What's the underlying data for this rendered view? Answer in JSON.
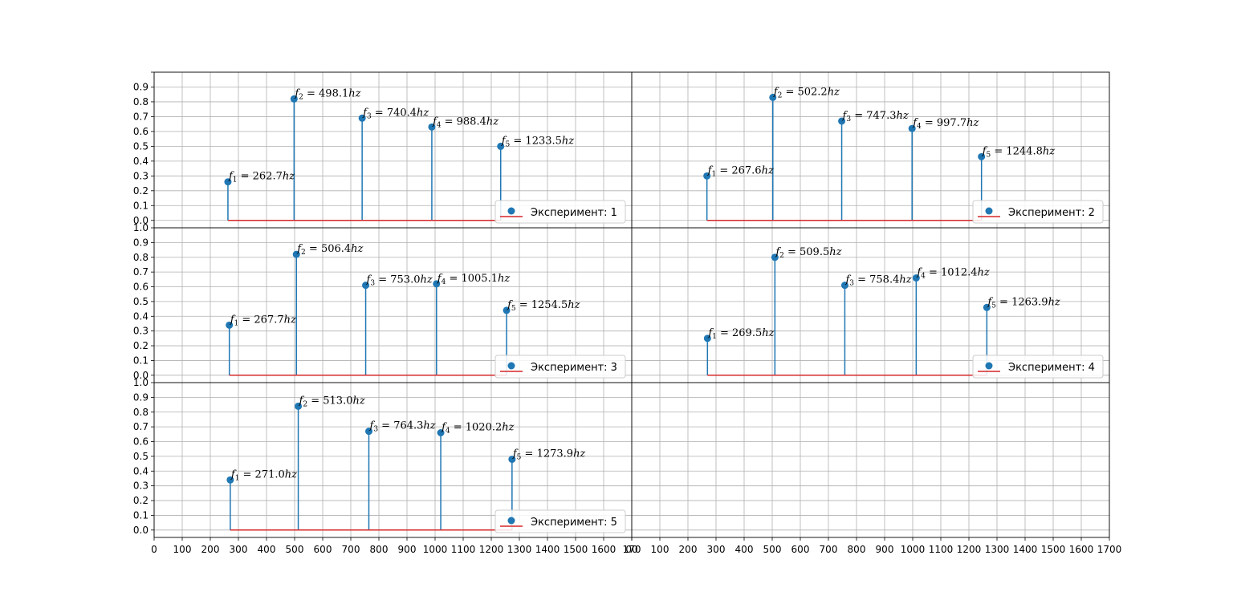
{
  "chart_data": [
    {
      "type": "stem",
      "name": "Эксперимент: 1",
      "legend": {
        "label": "Эксперимент: 1",
        "placement": "lower-right"
      },
      "x": [
        262.7,
        498.1,
        740.4,
        988.4,
        1233.5
      ],
      "y": [
        0.26,
        0.82,
        0.69,
        0.63,
        0.5
      ],
      "labels": [
        "262.7",
        "498.1",
        "740.4",
        "988.4",
        "1233.5"
      ],
      "baseline": {
        "from": 262.7,
        "to": 1233.5,
        "value": 0
      },
      "xlim": [
        0,
        1700
      ],
      "ylim": [
        -0.05,
        1.0
      ],
      "grid": true
    },
    {
      "type": "stem",
      "name": "Эксперимент: 2",
      "legend": {
        "label": "Эксперимент: 2",
        "placement": "lower-right"
      },
      "x": [
        267.6,
        502.2,
        747.3,
        997.7,
        1244.8
      ],
      "y": [
        0.3,
        0.83,
        0.67,
        0.62,
        0.43
      ],
      "labels": [
        "267.6",
        "502.2",
        "747.3",
        "997.7",
        "1244.8"
      ],
      "baseline": {
        "from": 267.6,
        "to": 1244.8,
        "value": 0
      },
      "xlim": [
        0,
        1700
      ],
      "ylim": [
        -0.05,
        1.0
      ],
      "grid": true
    },
    {
      "type": "stem",
      "name": "Эксперимент: 3",
      "legend": {
        "label": "Эксперимент: 3",
        "placement": "lower-right"
      },
      "x": [
        267.7,
        506.4,
        753.0,
        1005.1,
        1254.5
      ],
      "y": [
        0.34,
        0.82,
        0.61,
        0.62,
        0.44
      ],
      "labels": [
        "267.7",
        "506.4",
        "753.0",
        "1005.1",
        "1254.5"
      ],
      "baseline": {
        "from": 267.7,
        "to": 1254.5,
        "value": 0
      },
      "xlim": [
        0,
        1700
      ],
      "ylim": [
        -0.05,
        1.0
      ],
      "grid": true
    },
    {
      "type": "stem",
      "name": "Эксперимент: 4",
      "legend": {
        "label": "Эксперимент: 4",
        "placement": "lower-right"
      },
      "x": [
        269.5,
        509.5,
        758.4,
        1012.4,
        1263.9
      ],
      "y": [
        0.25,
        0.8,
        0.61,
        0.66,
        0.46
      ],
      "labels": [
        "269.5",
        "509.5",
        "758.4",
        "1012.4",
        "1263.9"
      ],
      "baseline": {
        "from": 269.5,
        "to": 1263.9,
        "value": 0
      },
      "xlim": [
        0,
        1700
      ],
      "ylim": [
        -0.05,
        1.0
      ],
      "grid": true
    },
    {
      "type": "stem",
      "name": "Эксперимент: 5",
      "legend": {
        "label": "Эксперимент: 5",
        "placement": "lower-right"
      },
      "x": [
        271.0,
        513.0,
        764.3,
        1020.2,
        1273.9
      ],
      "y": [
        0.34,
        0.84,
        0.67,
        0.66,
        0.48
      ],
      "labels": [
        "271.0",
        "513.0",
        "764.3",
        "1020.2",
        "1273.9"
      ],
      "baseline": {
        "from": 271.0,
        "to": 1273.9,
        "value": 0
      },
      "xlim": [
        0,
        1700
      ],
      "ylim": [
        -0.05,
        1.0
      ],
      "grid": true
    },
    {
      "type": "empty",
      "xlim": [
        0,
        1700
      ],
      "ylim": [
        -0.05,
        1.0
      ],
      "grid": true
    }
  ],
  "axes": {
    "x_ticks": [
      0,
      100,
      200,
      300,
      400,
      500,
      600,
      700,
      800,
      900,
      1000,
      1100,
      1200,
      1300,
      1400,
      1500,
      1600,
      1700
    ],
    "x_tick_labels": [
      "0",
      "100",
      "200",
      "300",
      "400",
      "500",
      "600",
      "700",
      "800",
      "900",
      "1000",
      "1100",
      "1200",
      "1300",
      "1400",
      "1500",
      "1600",
      "1700"
    ],
    "x_tick_labels_left_panel": [
      "0",
      "100",
      "200",
      "300",
      "400",
      "500",
      "600",
      "700",
      "800",
      "900",
      "1000",
      "1100",
      "1200",
      "1300",
      "1400",
      "1500",
      "1600",
      "170"
    ],
    "x_tick_labels_right_panel": [
      "00",
      "100",
      "200",
      "300",
      "400",
      "500",
      "600",
      "700",
      "800",
      "900",
      "1000",
      "1100",
      "1200",
      "1300",
      "1400",
      "1500",
      "1600",
      "1700"
    ],
    "y_ticks": [
      0.0,
      0.1,
      0.2,
      0.3,
      0.4,
      0.5,
      0.6,
      0.7,
      0.8,
      0.9,
      1.0
    ],
    "y_tick_labels": [
      "0.0",
      "0.1",
      "0.2",
      "0.3",
      "0.4",
      "0.5",
      "0.6",
      "0.7",
      "0.8",
      "0.9",
      "1.0"
    ],
    "y_tick_labels_top_row": [
      "0.0",
      "0.1",
      "0.2",
      "0.3",
      "0.4",
      "0.5",
      "0.6",
      "0.7",
      "0.8",
      "0.9"
    ]
  },
  "annotation": {
    "var": "f",
    "eq": " = ",
    "unit": "hz"
  },
  "colors": {
    "stem": "#1f77b4",
    "marker": "#1f77b4",
    "baseline": "#d62728",
    "grid": "#b0b0b0",
    "axes": "#000000",
    "legend_border": "#cccccc"
  }
}
